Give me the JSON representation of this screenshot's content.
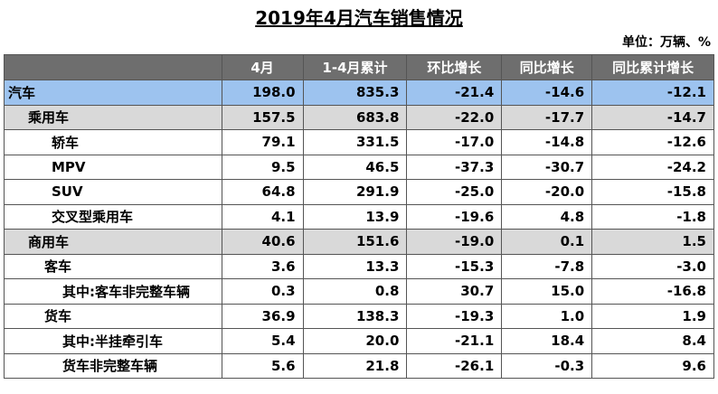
{
  "title": "2019年4月汽车销售情况",
  "unit": "单位：万辆、%",
  "table": {
    "header": [
      "",
      "4月",
      "1-4月累计",
      "环比增长",
      "同比增长",
      "同比累计增长"
    ],
    "rows": [
      [
        "汽车",
        "198.0",
        "835.3",
        "-21.4",
        "-14.6",
        "-12.1"
      ],
      [
        "乘用车",
        "157.5",
        "683.8",
        "-22.0",
        "-17.7",
        "-14.7"
      ],
      [
        "轿车",
        "79.1",
        "331.5",
        "-17.0",
        "-14.8",
        "-12.6"
      ],
      [
        "MPV",
        "9.5",
        "46.5",
        "-37.3",
        "-30.7",
        "-24.2"
      ],
      [
        "SUV",
        "64.8",
        "291.9",
        "-25.0",
        "-20.0",
        "-15.8"
      ],
      [
        "交叉型乘用车",
        "4.1",
        "13.9",
        "-19.6",
        "4.8",
        "-1.8"
      ],
      [
        "商用车",
        "40.6",
        "151.6",
        "-19.0",
        "0.1",
        "1.5"
      ],
      [
        "客车",
        "3.6",
        "13.3",
        "-15.3",
        "-7.8",
        "-3.0"
      ],
      [
        "其中:客车非完整车辆",
        "0.3",
        "0.8",
        "30.7",
        "15.0",
        "-16.8"
      ],
      [
        "货车",
        "36.9",
        "138.3",
        "-19.3",
        "1.0",
        "1.9"
      ],
      [
        "其中:半挂牵引车",
        "5.4",
        "20.0",
        "-21.1",
        "18.4",
        "8.4"
      ],
      [
        "货车非完整车辆",
        "5.6",
        "21.8",
        "-26.1",
        "-0.3",
        "9.6"
      ]
    ]
  }
}
